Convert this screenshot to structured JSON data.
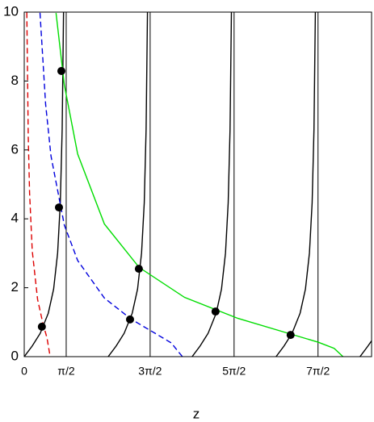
{
  "chart_data": {
    "type": "line",
    "x_label": "z",
    "xlim": [
      0,
      13
    ],
    "ylim": [
      0,
      10
    ],
    "xticks": [
      0,
      {
        "value": 1.5708,
        "label": "π/2"
      },
      {
        "value": 4.7124,
        "label": "3π/2"
      },
      {
        "value": 7.854,
        "label": "5π/2"
      },
      {
        "value": 10.9956,
        "label": "7π/2"
      }
    ],
    "yticks": [
      0,
      2,
      4,
      6,
      8,
      10
    ],
    "x_grid": true,
    "series": [
      {
        "color": "#000000",
        "dash": "solid",
        "x": [
          0,
          0.3,
          0.6,
          0.9,
          1.1,
          1.25,
          1.35,
          1.42,
          1.4711
        ],
        "values": [
          0,
          0.31,
          0.68,
          1.26,
          1.96,
          3.01,
          4.46,
          6.6,
          10
        ]
      },
      {
        "color": "#000000",
        "dash": "solid",
        "x": [
          3.1416,
          3.4416,
          3.7416,
          4.0416,
          4.2416,
          4.3916,
          4.4916,
          4.5616,
          4.6127
        ],
        "values": [
          0,
          0.31,
          0.68,
          1.26,
          1.96,
          3.01,
          4.46,
          6.6,
          10
        ]
      },
      {
        "color": "#000000",
        "dash": "solid",
        "x": [
          6.2832,
          6.5832,
          6.8832,
          7.1832,
          7.3832,
          7.5332,
          7.6332,
          7.7032,
          7.7543
        ],
        "values": [
          0,
          0.31,
          0.68,
          1.26,
          1.96,
          3.01,
          4.46,
          6.6,
          10
        ]
      },
      {
        "color": "#000000",
        "dash": "solid",
        "x": [
          9.4248,
          9.7248,
          10.0248,
          10.3248,
          10.5248,
          10.6748,
          10.7748,
          10.8448,
          10.8959
        ],
        "values": [
          0,
          0.31,
          0.68,
          1.26,
          1.96,
          3.01,
          4.46,
          6.6,
          10
        ]
      },
      {
        "color": "#000000",
        "dash": "solid",
        "x": [
          12.5664,
          12.8664,
          13
        ],
        "values": [
          0,
          0.31,
          0.46
        ]
      },
      {
        "color": "#00dd00",
        "dash": "solid",
        "x": [
          1.19,
          1.5,
          2,
          3,
          4.3,
          6,
          8,
          10,
          11,
          11.6,
          11.93
        ],
        "values": [
          9.975,
          7.89,
          5.88,
          3.85,
          2.59,
          1.72,
          1.11,
          0.65,
          0.42,
          0.24,
          0
        ]
      },
      {
        "color": "#0000dd",
        "dash": "dashed",
        "x": [
          0.59,
          0.8,
          1,
          1.5,
          2,
          3,
          4,
          5,
          5.5,
          5.92
        ],
        "values": [
          9.98,
          7.33,
          5.83,
          3.82,
          2.79,
          1.7,
          1.09,
          0.63,
          0.4,
          0
        ]
      },
      {
        "color": "#dd0000",
        "dash": "dashed",
        "x": [
          0.0966,
          0.15,
          0.2,
          0.3,
          0.5,
          0.7,
          0.85,
          0.97
        ],
        "values": [
          9.99,
          6.39,
          4.75,
          3.07,
          1.66,
          0.96,
          0.55,
          0
        ]
      },
      {
        "type": "scatter",
        "color": "#000000",
        "x": [
          0.66,
          1.3,
          1.39,
          3.96,
          4.29,
          7.16,
          9.97
        ],
        "values": [
          0.87,
          4.33,
          8.29,
          1.08,
          2.55,
          1.31,
          0.63
        ]
      }
    ]
  }
}
